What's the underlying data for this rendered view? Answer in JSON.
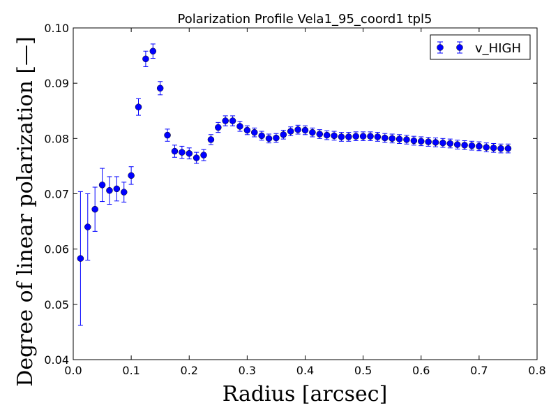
{
  "chart_data": {
    "type": "scatter",
    "title": "Polarization Profile Vela1_95_coord1 tpl5",
    "xlabel": "Radius [arcsec]",
    "ylabel": "Degree of linear polarization [—]",
    "xlim": [
      0.0,
      0.8
    ],
    "ylim": [
      0.04,
      0.1
    ],
    "xticks": [
      "0.0",
      "0.1",
      "0.2",
      "0.3",
      "0.4",
      "0.5",
      "0.6",
      "0.7",
      "0.8"
    ],
    "yticks": [
      "0.04",
      "0.05",
      "0.06",
      "0.07",
      "0.08",
      "0.09",
      "0.10"
    ],
    "grid": false,
    "legend_position": "top-right",
    "color": "#0000ff",
    "series": [
      {
        "name": "v_HIGH",
        "x": [
          0.0125,
          0.025,
          0.0375,
          0.05,
          0.0625,
          0.075,
          0.0875,
          0.1,
          0.1125,
          0.125,
          0.1375,
          0.15,
          0.1625,
          0.175,
          0.1875,
          0.2,
          0.2125,
          0.225,
          0.2375,
          0.25,
          0.2625,
          0.275,
          0.2875,
          0.3,
          0.3125,
          0.325,
          0.3375,
          0.35,
          0.3625,
          0.375,
          0.3875,
          0.4,
          0.4125,
          0.425,
          0.4375,
          0.45,
          0.4625,
          0.475,
          0.4875,
          0.5,
          0.5125,
          0.525,
          0.5375,
          0.55,
          0.5625,
          0.575,
          0.5875,
          0.6,
          0.6125,
          0.625,
          0.6375,
          0.65,
          0.6625,
          0.675,
          0.6875,
          0.7,
          0.7125,
          0.725,
          0.7375,
          0.75
        ],
        "y": [
          0.0583,
          0.064,
          0.0672,
          0.0716,
          0.0706,
          0.0709,
          0.0703,
          0.0733,
          0.0857,
          0.0944,
          0.0958,
          0.0891,
          0.0806,
          0.0777,
          0.0775,
          0.0773,
          0.0765,
          0.077,
          0.0798,
          0.082,
          0.0832,
          0.0832,
          0.0822,
          0.0815,
          0.0811,
          0.0805,
          0.08,
          0.0801,
          0.0807,
          0.0813,
          0.0816,
          0.0815,
          0.0811,
          0.0808,
          0.0806,
          0.0805,
          0.0803,
          0.0803,
          0.0804,
          0.0804,
          0.0804,
          0.0803,
          0.0801,
          0.08,
          0.0799,
          0.0798,
          0.0796,
          0.0795,
          0.0794,
          0.0793,
          0.0792,
          0.0791,
          0.0789,
          0.0788,
          0.0787,
          0.0786,
          0.0784,
          0.0783,
          0.0782,
          0.0782
        ],
        "yerr": [
          0.0121,
          0.006,
          0.004,
          0.003,
          0.0025,
          0.0022,
          0.0018,
          0.0016,
          0.0015,
          0.0014,
          0.0013,
          0.0012,
          0.0011,
          0.0011,
          0.0011,
          0.001,
          0.001,
          0.001,
          0.0009,
          0.0009,
          0.0009,
          0.0009,
          0.0009,
          0.0008,
          0.0008,
          0.0008,
          0.0008,
          0.0008,
          0.0008,
          0.0008,
          0.0008,
          0.0008,
          0.0008,
          0.0008,
          0.0008,
          0.0008,
          0.0008,
          0.0008,
          0.0008,
          0.0008,
          0.0008,
          0.0008,
          0.0008,
          0.0008,
          0.0008,
          0.0008,
          0.0008,
          0.0008,
          0.0008,
          0.0008,
          0.0008,
          0.0008,
          0.0008,
          0.0008,
          0.0008,
          0.0008,
          0.0008,
          0.0008,
          0.0008,
          0.0008
        ]
      }
    ]
  }
}
